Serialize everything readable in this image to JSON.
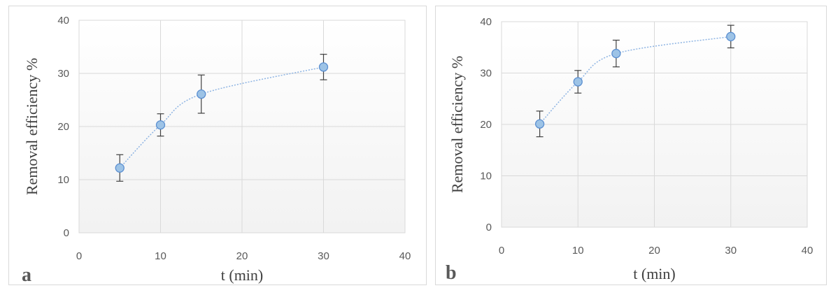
{
  "chart_data": [
    {
      "type": "scatter",
      "panel_label": "a",
      "xlabel": "t (min)",
      "ylabel": "Removal efficiency %",
      "xlim": [
        0,
        40
      ],
      "ylim": [
        0,
        40
      ],
      "xticks": [
        0,
        10,
        20,
        30,
        40
      ],
      "yticks": [
        0,
        10,
        20,
        30,
        40
      ],
      "grid": true,
      "series": [
        {
          "x": [
            5,
            10,
            15,
            30
          ],
          "y": [
            12.2,
            20.3,
            26.1,
            31.2
          ],
          "error": [
            2.5,
            2.1,
            3.6,
            2.4
          ]
        }
      ]
    },
    {
      "type": "scatter",
      "panel_label": "b",
      "xlabel": "t (min)",
      "ylabel": "Removal efficiency %",
      "xlim": [
        0,
        40
      ],
      "ylim": [
        0,
        40
      ],
      "xticks": [
        0,
        10,
        20,
        30,
        40
      ],
      "yticks": [
        0,
        10,
        20,
        30,
        40
      ],
      "grid": true,
      "series": [
        {
          "x": [
            5,
            10,
            15,
            30
          ],
          "y": [
            20.1,
            28.3,
            33.8,
            37.1
          ],
          "error": [
            2.5,
            2.2,
            2.6,
            2.2
          ]
        }
      ]
    }
  ],
  "colors": {
    "marker_fill": "#9dc3e6",
    "marker_stroke": "#5b8fd1",
    "line": "#8eb4e3",
    "error_bar": "#404040",
    "grid": "#d9d9d9",
    "plot_gradient_bottom": "#f2f2f2"
  }
}
